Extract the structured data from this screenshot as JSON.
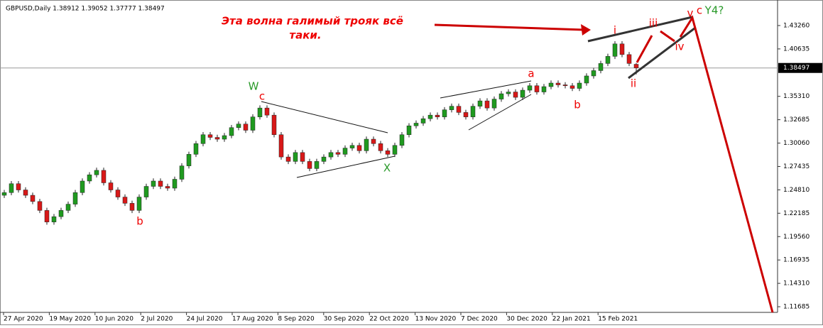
{
  "chart_data": {
    "type": "candlestick",
    "header": "GBPUSD,Daily  1.38912 1.39052 1.37777 1.38497",
    "bull_color": "#1f9a1f",
    "bear_color": "#d81818",
    "wick_color": "#222222",
    "ylim": [
      1.1105,
      1.4549
    ],
    "yticks": [
      {
        "value": 1.4326,
        "label": "1.43260"
      },
      {
        "value": 1.40635,
        "label": "1.40635"
      },
      {
        "value": 1.3531,
        "label": "1.35310"
      },
      {
        "value": 1.32685,
        "label": "1.32685"
      },
      {
        "value": 1.3006,
        "label": "1.30060"
      },
      {
        "value": 1.27435,
        "label": "1.27435"
      },
      {
        "value": 1.2481,
        "label": "1.24810"
      },
      {
        "value": 1.22185,
        "label": "1.22185"
      },
      {
        "value": 1.1956,
        "label": "1.19560"
      },
      {
        "value": 1.16935,
        "label": "1.16935"
      },
      {
        "value": 1.1431,
        "label": "1.14310"
      },
      {
        "value": 1.11685,
        "label": "1.11685"
      }
    ],
    "current_price": {
      "value": 1.38497,
      "label": "1.38497"
    },
    "x_labels": [
      "27 Apr 2020",
      "19 May 2020",
      "10 Jun 2020",
      "2 Jul 2020",
      "24 Jul 2020",
      "17 Aug 2020",
      "8 Sep 2020",
      "30 Sep 2020",
      "22 Oct 2020",
      "13 Nov 2020",
      "7 Dec 2020",
      "30 Dec 2020",
      "22 Jan 2021",
      "15 Feb 2021"
    ],
    "annotation_main": "Эта волна галимый трояк всё",
    "annotation_main_2": "таки.",
    "wave_labels": [
      "W",
      "c",
      "X",
      "a",
      "b",
      "b",
      "i",
      "ii",
      "iii",
      "iv",
      "v",
      "c",
      "Y4?"
    ],
    "candles": [
      [
        1.242,
        1.248,
        1.239,
        1.245
      ],
      [
        1.245,
        1.258,
        1.242,
        1.255
      ],
      [
        1.255,
        1.258,
        1.245,
        1.248
      ],
      [
        1.248,
        1.251,
        1.239,
        1.242
      ],
      [
        1.242,
        1.245,
        1.232,
        1.235
      ],
      [
        1.235,
        1.238,
        1.222,
        1.225
      ],
      [
        1.225,
        1.228,
        1.209,
        1.212
      ],
      [
        1.212,
        1.221,
        1.209,
        1.218
      ],
      [
        1.218,
        1.228,
        1.215,
        1.225
      ],
      [
        1.225,
        1.235,
        1.222,
        1.232
      ],
      [
        1.232,
        1.248,
        1.229,
        1.245
      ],
      [
        1.245,
        1.261,
        1.242,
        1.258
      ],
      [
        1.258,
        1.268,
        1.255,
        1.265
      ],
      [
        1.265,
        1.273,
        1.262,
        1.27
      ],
      [
        1.27,
        1.273,
        1.253,
        1.256
      ],
      [
        1.256,
        1.259,
        1.245,
        1.248
      ],
      [
        1.248,
        1.251,
        1.237,
        1.24
      ],
      [
        1.24,
        1.243,
        1.23,
        1.233
      ],
      [
        1.233,
        1.236,
        1.222,
        1.225
      ],
      [
        1.225,
        1.243,
        1.222,
        1.24
      ],
      [
        1.24,
        1.255,
        1.237,
        1.252
      ],
      [
        1.252,
        1.261,
        1.249,
        1.258
      ],
      [
        1.258,
        1.261,
        1.249,
        1.252
      ],
      [
        1.252,
        1.255,
        1.247,
        1.25
      ],
      [
        1.25,
        1.263,
        1.247,
        1.26
      ],
      [
        1.26,
        1.278,
        1.257,
        1.275
      ],
      [
        1.275,
        1.291,
        1.272,
        1.288
      ],
      [
        1.288,
        1.303,
        1.285,
        1.3
      ],
      [
        1.3,
        1.313,
        1.297,
        1.31
      ],
      [
        1.31,
        1.313,
        1.304,
        1.307
      ],
      [
        1.307,
        1.31,
        1.302,
        1.305
      ],
      [
        1.305,
        1.312,
        1.302,
        1.309
      ],
      [
        1.309,
        1.321,
        1.306,
        1.318
      ],
      [
        1.318,
        1.325,
        1.315,
        1.322
      ],
      [
        1.322,
        1.325,
        1.312,
        1.315
      ],
      [
        1.315,
        1.333,
        1.312,
        1.33
      ],
      [
        1.33,
        1.343,
        1.327,
        1.34
      ],
      [
        1.34,
        1.343,
        1.329,
        1.332
      ],
      [
        1.332,
        1.335,
        1.307,
        1.31
      ],
      [
        1.31,
        1.313,
        1.282,
        1.285
      ],
      [
        1.285,
        1.288,
        1.277,
        1.28
      ],
      [
        1.28,
        1.293,
        1.277,
        1.29
      ],
      [
        1.29,
        1.293,
        1.277,
        1.28
      ],
      [
        1.28,
        1.283,
        1.269,
        1.272
      ],
      [
        1.272,
        1.283,
        1.269,
        1.28
      ],
      [
        1.28,
        1.288,
        1.277,
        1.285
      ],
      [
        1.285,
        1.293,
        1.282,
        1.29
      ],
      [
        1.29,
        1.293,
        1.285,
        1.288
      ],
      [
        1.288,
        1.298,
        1.285,
        1.295
      ],
      [
        1.295,
        1.301,
        1.292,
        1.298
      ],
      [
        1.298,
        1.301,
        1.289,
        1.292
      ],
      [
        1.292,
        1.308,
        1.289,
        1.305
      ],
      [
        1.305,
        1.308,
        1.297,
        1.3
      ],
      [
        1.3,
        1.303,
        1.289,
        1.292
      ],
      [
        1.292,
        1.295,
        1.285,
        1.288
      ],
      [
        1.288,
        1.301,
        1.285,
        1.298
      ],
      [
        1.298,
        1.313,
        1.295,
        1.31
      ],
      [
        1.31,
        1.323,
        1.307,
        1.32
      ],
      [
        1.32,
        1.326,
        1.317,
        1.323
      ],
      [
        1.323,
        1.331,
        1.32,
        1.328
      ],
      [
        1.328,
        1.335,
        1.325,
        1.332
      ],
      [
        1.332,
        1.335,
        1.327,
        1.33
      ],
      [
        1.33,
        1.341,
        1.327,
        1.338
      ],
      [
        1.338,
        1.345,
        1.335,
        1.342
      ],
      [
        1.342,
        1.345,
        1.332,
        1.335
      ],
      [
        1.335,
        1.338,
        1.327,
        1.33
      ],
      [
        1.33,
        1.345,
        1.327,
        1.342
      ],
      [
        1.342,
        1.351,
        1.339,
        1.348
      ],
      [
        1.348,
        1.351,
        1.337,
        1.34
      ],
      [
        1.34,
        1.353,
        1.337,
        1.35
      ],
      [
        1.35,
        1.359,
        1.347,
        1.356
      ],
      [
        1.356,
        1.361,
        1.353,
        1.358
      ],
      [
        1.358,
        1.361,
        1.349,
        1.352
      ],
      [
        1.352,
        1.363,
        1.349,
        1.36
      ],
      [
        1.36,
        1.368,
        1.357,
        1.365
      ],
      [
        1.365,
        1.368,
        1.355,
        1.358
      ],
      [
        1.358,
        1.367,
        1.355,
        1.364
      ],
      [
        1.364,
        1.371,
        1.361,
        1.368
      ],
      [
        1.368,
        1.371,
        1.363,
        1.366
      ],
      [
        1.366,
        1.369,
        1.362,
        1.365
      ],
      [
        1.365,
        1.368,
        1.359,
        1.362
      ],
      [
        1.362,
        1.371,
        1.359,
        1.368
      ],
      [
        1.368,
        1.379,
        1.365,
        1.376
      ],
      [
        1.376,
        1.385,
        1.373,
        1.382
      ],
      [
        1.382,
        1.393,
        1.379,
        1.39
      ],
      [
        1.39,
        1.401,
        1.387,
        1.398
      ],
      [
        1.398,
        1.415,
        1.395,
        1.412
      ],
      [
        1.412,
        1.415,
        1.397,
        1.4
      ],
      [
        1.4,
        1.403,
        1.387,
        1.39
      ],
      [
        1.38912,
        1.39052,
        1.37777,
        1.38497
      ]
    ]
  }
}
